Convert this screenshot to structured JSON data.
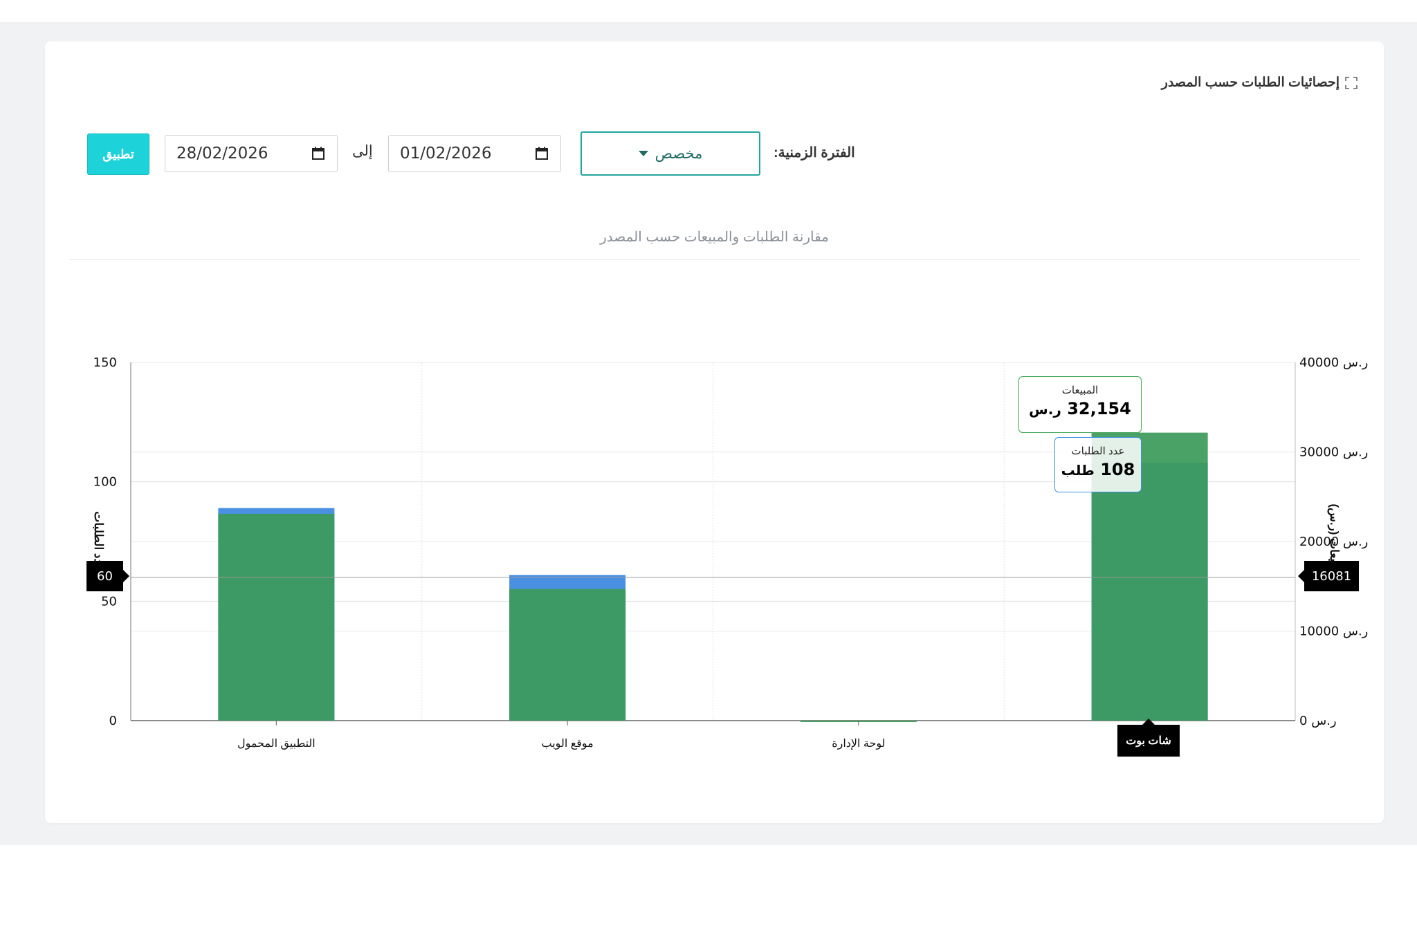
{
  "card": {
    "title": "إحصائيات الطلبات حسب المصدر",
    "expand_icon": "expand-icon"
  },
  "filters": {
    "period_label": "الفترة الزمنية:",
    "period_value": "مخصص",
    "from_date": "01/02/2026",
    "to_label": "إلى",
    "to_date": "28/02/2026",
    "apply_label": "تطبيق",
    "calendar_icon": "calendar-icon",
    "accent_color": "#1dd2d8"
  },
  "chart_data": {
    "type": "bar",
    "title": "مقارنة الطلبات والمبيعات حسب المصدر",
    "categories": [
      "التطبيق المحمول",
      "موقع الويب",
      "لوحة الإدارة",
      "شات بوت"
    ],
    "series": [
      {
        "name": "عدد الطلبات",
        "axis": "left",
        "values": [
          89,
          61,
          0,
          108
        ],
        "color": "#4a90e2"
      },
      {
        "name": "المبيعات",
        "axis": "right",
        "values": [
          23100,
          14700,
          0,
          32154
        ],
        "color": "#3d9b5a"
      }
    ],
    "yleft": {
      "label": "عدد الطلبات",
      "ylim": [
        0,
        150
      ],
      "ticks": [
        "0",
        "50",
        "100",
        "150"
      ]
    },
    "yright": {
      "label": "المبيعات (ر.س)",
      "ylim": [
        0,
        40000
      ],
      "ticks": [
        "0 ر.س",
        "10000 ر.س",
        "20000 ر.س",
        "30000 ر.س",
        "40000 ر.س"
      ]
    },
    "grid": true,
    "crosshair": {
      "left_value": "60",
      "right_value": "16081",
      "category": "شات بوت"
    },
    "tooltips": {
      "sales_label": "المبيعات",
      "sales_value": "32,154",
      "sales_unit": "ر.س",
      "orders_label": "عدد الطلبات",
      "orders_value": "108",
      "orders_unit": "طلب"
    }
  }
}
